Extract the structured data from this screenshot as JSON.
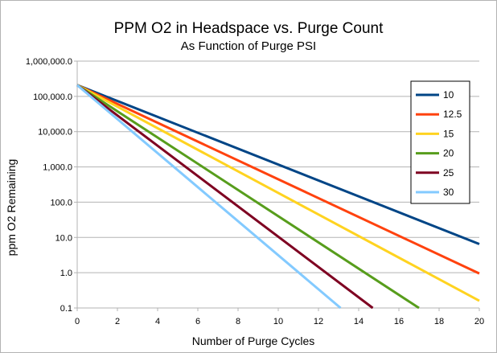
{
  "chart_data": {
    "type": "line",
    "title": "PPM O2 in Headspace vs. Purge Count",
    "subtitle": "As Function of Purge PSI",
    "xlabel": "Number of Purge Cycles",
    "ylabel": "ppm O2 Remaining",
    "yscale": "log",
    "xlim": [
      0,
      20
    ],
    "ylim": [
      0.1,
      1000000
    ],
    "x_ticks": [
      "0",
      "2",
      "4",
      "6",
      "8",
      "10",
      "12",
      "14",
      "16",
      "18",
      "20"
    ],
    "y_ticks": [
      "0.1",
      "1.0",
      "10.0",
      "100.0",
      "1,000.0",
      "10,000.0",
      "100,000.0",
      "1,000,000.0"
    ],
    "grid": "horizontal major",
    "legend_position": "top-right",
    "legend_title": "",
    "series": [
      {
        "name": "10",
        "color": "#004586",
        "x": [
          0,
          20
        ],
        "y": [
          209000,
          6.5
        ]
      },
      {
        "name": "12.5",
        "color": "#ff420e",
        "x": [
          0,
          20
        ],
        "y": [
          209000,
          0.95
        ]
      },
      {
        "name": "15",
        "color": "#ffd320",
        "x": [
          0,
          20
        ],
        "y": [
          209000,
          0.16
        ]
      },
      {
        "name": "20",
        "color": "#579d1c",
        "x": [
          0,
          17
        ],
        "y": [
          209000,
          0.1
        ]
      },
      {
        "name": "25",
        "color": "#7e0021",
        "x": [
          0,
          14.7
        ],
        "y": [
          209000,
          0.1
        ]
      },
      {
        "name": "30",
        "color": "#83caff",
        "x": [
          0,
          13.1
        ],
        "y": [
          209000,
          0.1
        ]
      }
    ]
  }
}
